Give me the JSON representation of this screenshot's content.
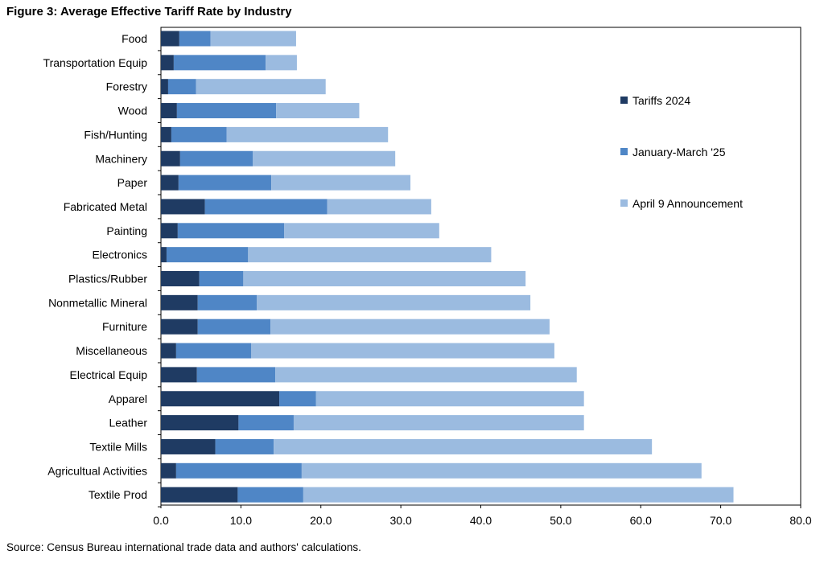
{
  "title": "Figure 3: Average Effective Tariff Rate by Industry",
  "source": "Source: Census Bureau international trade data and authors' calculations.",
  "colors": {
    "tariffs_2024": "#1f3b63",
    "jan_mar_25": "#4f86c6",
    "april_9": "#9bbbe0",
    "frame": "#000000"
  },
  "chart_data": {
    "type": "bar",
    "orientation": "horizontal",
    "stacked": true,
    "categories": [
      "Food",
      "Transportation Equip",
      "Forestry",
      "Wood",
      "Fish/Hunting",
      "Machinery",
      "Paper",
      "Fabricated Metal",
      "Painting",
      "Electronics",
      "Plastics/Rubber",
      "Nonmetallic Mineral",
      "Furniture",
      "Miscellaneous",
      "Electrical Equip",
      "Apparel",
      "Leather",
      "Textile Mills",
      "Agricultual Activities",
      "Textile Prod"
    ],
    "series": [
      {
        "name": "Tariffs 2024",
        "values": [
          2.3,
          1.6,
          0.9,
          2.0,
          1.3,
          2.4,
          2.2,
          5.5,
          2.1,
          0.7,
          4.8,
          4.6,
          4.6,
          1.9,
          4.5,
          14.8,
          9.7,
          6.8,
          1.9,
          9.6
        ]
      },
      {
        "name": "January-March '25",
        "values": [
          3.9,
          11.5,
          3.5,
          12.4,
          6.9,
          9.1,
          11.6,
          15.3,
          13.3,
          10.2,
          5.5,
          7.4,
          9.1,
          9.4,
          9.8,
          4.6,
          6.9,
          7.3,
          15.7,
          8.2
        ]
      },
      {
        "name": "April 9 Announcement",
        "values": [
          10.7,
          3.9,
          16.2,
          10.4,
          20.2,
          17.8,
          17.4,
          13.0,
          19.4,
          30.4,
          35.3,
          34.2,
          34.9,
          37.9,
          37.7,
          33.5,
          36.3,
          47.3,
          50.0,
          53.8
        ]
      }
    ],
    "xlim": [
      0,
      80
    ],
    "xticks": [
      "0.0",
      "10.0",
      "20.0",
      "30.0",
      "40.0",
      "50.0",
      "60.0",
      "70.0",
      "80.0"
    ],
    "xtick_values": [
      0,
      10,
      20,
      30,
      40,
      50,
      60,
      70,
      80
    ],
    "xlabel": "",
    "ylabel": "",
    "grid": false,
    "legend_position": "right"
  }
}
